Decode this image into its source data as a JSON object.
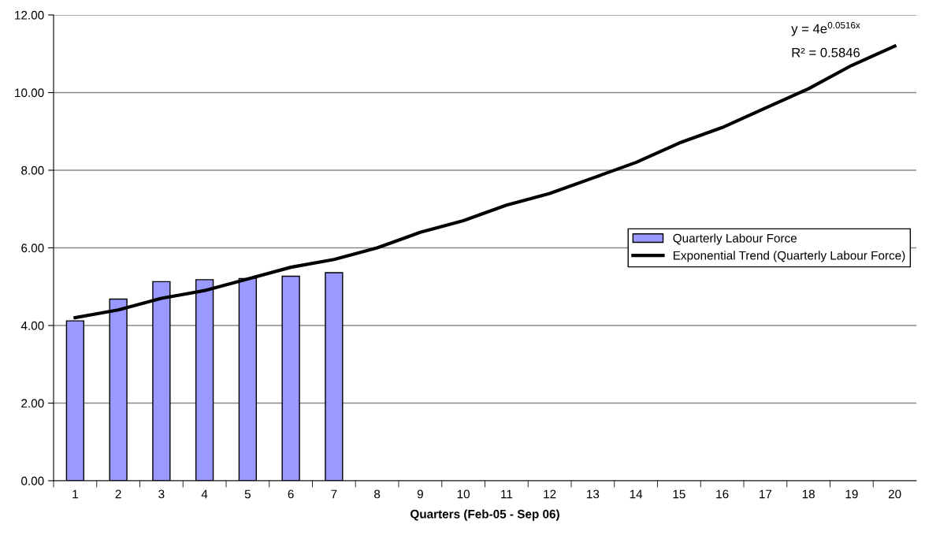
{
  "chart_data": {
    "type": "bar",
    "xlabel": "Quarters (Feb-05 - Sep 06)",
    "categories": [
      "1",
      "2",
      "3",
      "4",
      "5",
      "6",
      "7",
      "8",
      "9",
      "10",
      "11",
      "12",
      "13",
      "14",
      "15",
      "16",
      "17",
      "18",
      "19",
      "20"
    ],
    "series": [
      {
        "name": "Quarterly Labour Force",
        "color": "#9999ff",
        "values": [
          4.12,
          4.68,
          5.13,
          5.18,
          5.21,
          5.27,
          5.36,
          null,
          null,
          null,
          null,
          null,
          null,
          null,
          null,
          null,
          null,
          null,
          null,
          null
        ]
      },
      {
        "name": "Exponential Trend (Quarterly Labour Force)",
        "type": "line",
        "color": "#000000",
        "values": [
          4.2,
          4.4,
          4.7,
          4.9,
          5.2,
          5.5,
          5.7,
          6.0,
          6.4,
          6.7,
          7.1,
          7.4,
          7.8,
          8.2,
          8.7,
          9.1,
          9.6,
          10.1,
          10.7,
          11.2
        ]
      }
    ],
    "ylim": [
      0,
      12
    ],
    "yticks": [
      {
        "value": 0,
        "label": "0.00"
      },
      {
        "value": 2,
        "label": "2.00"
      },
      {
        "value": 4,
        "label": "4.00"
      },
      {
        "value": 6,
        "label": "6.00"
      },
      {
        "value": 8,
        "label": "8.00"
      },
      {
        "value": 10,
        "label": "10.00"
      },
      {
        "value": 12,
        "label": "12.00"
      }
    ],
    "grid": "y",
    "legend": "center right",
    "marker": "none",
    "line_style": "solid",
    "annotations": [
      "y = 4e$^{0.0516x}$",
      "R² = 0.5846"
    ]
  }
}
